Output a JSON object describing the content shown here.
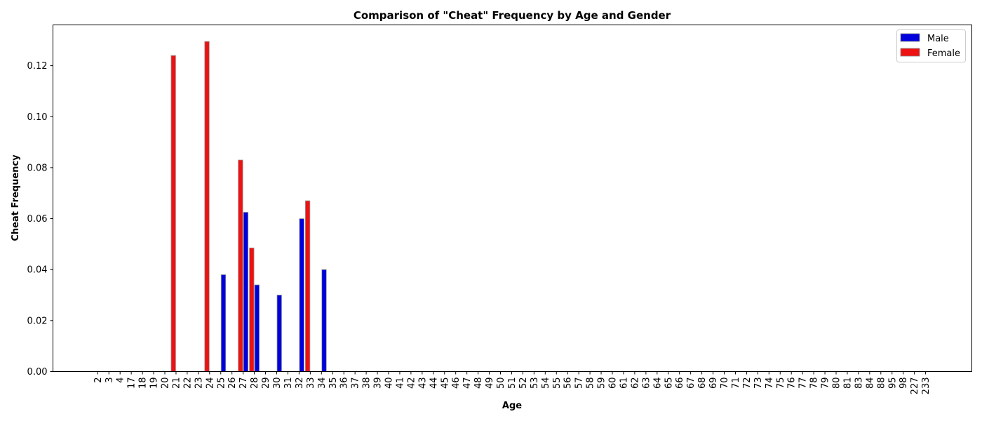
{
  "chart_data": {
    "type": "bar",
    "title": "Comparison of \"Cheat\" Frequency by Age and Gender",
    "xlabel": "Age",
    "ylabel": "Cheat Frequency",
    "ylim": [
      0,
      0.136
    ],
    "yticks": [
      "0.00",
      "0.02",
      "0.04",
      "0.06",
      "0.08",
      "0.10",
      "0.12"
    ],
    "yticks_values": [
      0,
      0.02,
      0.04,
      0.06,
      0.08,
      0.1,
      0.12
    ],
    "grid": false,
    "legend_position": "top-right",
    "categories": [
      "2",
      "3",
      "4",
      "17",
      "18",
      "19",
      "20",
      "21",
      "22",
      "23",
      "24",
      "25",
      "26",
      "27",
      "28",
      "29",
      "30",
      "31",
      "32",
      "33",
      "34",
      "35",
      "36",
      "37",
      "38",
      "39",
      "40",
      "41",
      "42",
      "43",
      "44",
      "45",
      "46",
      "47",
      "48",
      "49",
      "50",
      "51",
      "52",
      "53",
      "54",
      "55",
      "56",
      "57",
      "58",
      "59",
      "60",
      "61",
      "62",
      "63",
      "64",
      "65",
      "66",
      "67",
      "68",
      "69",
      "70",
      "71",
      "72",
      "73",
      "74",
      "75",
      "76",
      "77",
      "78",
      "79",
      "80",
      "81",
      "83",
      "84",
      "88",
      "95",
      "98",
      "227",
      "233"
    ],
    "series": [
      {
        "name": "Male",
        "color": "#0000dd",
        "values": [
          0,
          0,
          0,
          0,
          0,
          0,
          0,
          0,
          0,
          0,
          0,
          0.038,
          0,
          0.0625,
          0.034,
          0,
          0.03,
          0,
          0.06,
          0,
          0.04,
          0,
          0,
          0,
          0,
          0,
          0,
          0,
          0,
          0,
          0,
          0,
          0,
          0,
          0,
          0,
          0,
          0,
          0,
          0,
          0,
          0,
          0,
          0,
          0,
          0,
          0,
          0,
          0,
          0,
          0,
          0,
          0,
          0,
          0,
          0,
          0,
          0,
          0,
          0,
          0,
          0,
          0,
          0,
          0,
          0,
          0,
          0,
          0,
          0,
          0,
          0,
          0,
          0,
          0
        ]
      },
      {
        "name": "Female",
        "color": "#ee1111",
        "values": [
          0,
          0,
          0,
          0,
          0,
          0,
          0,
          0.124,
          0,
          0,
          0.1295,
          0,
          0,
          0.083,
          0.0485,
          0,
          0,
          0,
          0,
          0.067,
          0,
          0,
          0,
          0,
          0,
          0,
          0,
          0,
          0,
          0,
          0,
          0,
          0,
          0,
          0,
          0,
          0,
          0,
          0,
          0,
          0,
          0,
          0,
          0,
          0,
          0,
          0,
          0,
          0,
          0,
          0,
          0,
          0,
          0,
          0,
          0,
          0,
          0,
          0,
          0,
          0,
          0,
          0,
          0,
          0,
          0,
          0,
          0,
          0,
          0,
          0,
          0,
          0,
          0,
          0
        ]
      }
    ]
  }
}
